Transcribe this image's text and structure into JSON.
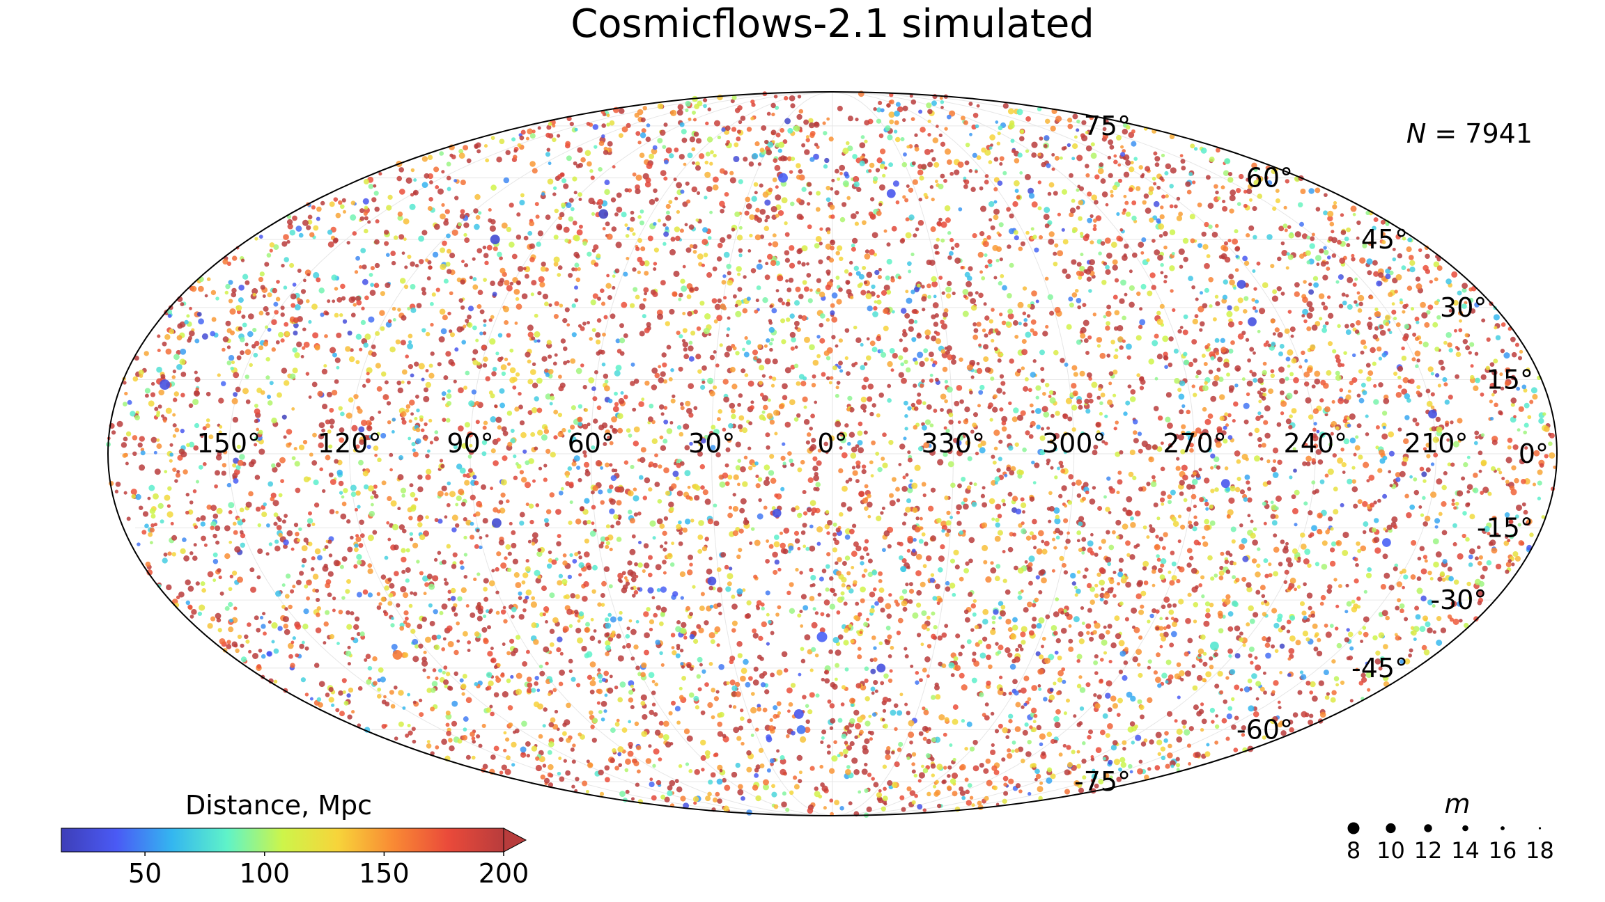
{
  "chart_data": {
    "type": "scatter",
    "projection": "mollweide",
    "title": "Cosmicflows-2.1 simulated",
    "annotation": "N = 7941",
    "n_points": 7941,
    "grid": true,
    "lat_ticks": [
      75,
      60,
      45,
      30,
      15,
      0,
      -15,
      -30,
      -45,
      -60,
      -75
    ],
    "lat_tick_labels": [
      "75°",
      "60°",
      "45°",
      "30°",
      "15°",
      "0°",
      "-15°",
      "-30°",
      "-45°",
      "-60°",
      "-75°"
    ],
    "lon_ticks": [
      150,
      120,
      90,
      60,
      30,
      0,
      330,
      300,
      270,
      240,
      210
    ],
    "lon_tick_labels": [
      "150°",
      "120°",
      "90°",
      "60°",
      "30°",
      "0°",
      "330°",
      "300°",
      "270°",
      "240°",
      "210°"
    ],
    "colorbar": {
      "label": "Distance, Mpc",
      "min": 15,
      "max": 200,
      "extend": "max",
      "ticks": [
        50,
        100,
        150,
        200
      ],
      "tick_labels": [
        "50",
        "100",
        "150",
        "200"
      ],
      "colormap": "jet",
      "colors": [
        "#3e3fb8",
        "#4a5af5",
        "#34b6f0",
        "#5ff3c8",
        "#cdf54a",
        "#f7d43a",
        "#f98a34",
        "#ea4a3a",
        "#b83c3c"
      ]
    },
    "size_legend": {
      "label": "m",
      "values": [
        8,
        10,
        12,
        14,
        16,
        18
      ],
      "tick_labels": [
        "8",
        "10",
        "12",
        "14",
        "16",
        "18"
      ]
    },
    "highlighted_points": [
      {
        "lon": 169,
        "lat": 14,
        "distance": 30,
        "m": 8
      },
      {
        "lon": 104,
        "lat": 45,
        "distance": 25,
        "m": 9
      },
      {
        "lon": 76,
        "lat": 51,
        "distance": 20,
        "m": 9
      },
      {
        "lon": 19,
        "lat": 60,
        "distance": 40,
        "m": 9
      },
      {
        "lon": 339,
        "lat": 56,
        "distance": 35,
        "m": 10
      },
      {
        "lon": 248,
        "lat": 27,
        "distance": 30,
        "m": 10
      },
      {
        "lon": 245,
        "lat": 35,
        "distance": 30,
        "m": 10
      },
      {
        "lon": 12,
        "lat": -60,
        "distance": 45,
        "m": 10
      },
      {
        "lon": 345,
        "lat": -45,
        "distance": 30,
        "m": 10
      },
      {
        "lon": 3,
        "lat": -38,
        "distance": 40,
        "m": 8
      },
      {
        "lon": 85,
        "lat": -14,
        "distance": 25,
        "m": 9
      },
      {
        "lon": 130,
        "lat": -42,
        "distance": 160,
        "m": 9
      },
      {
        "lon": 218,
        "lat": -18,
        "distance": 40,
        "m": 10
      },
      {
        "lon": 262,
        "lat": -6,
        "distance": 35,
        "m": 10
      },
      {
        "lon": 32,
        "lat": -26,
        "distance": 30,
        "m": 10
      },
      {
        "lon": 14,
        "lat": -12,
        "distance": 30,
        "m": 10
      },
      {
        "lon": 248,
        "lat": -40,
        "distance": 80,
        "m": 10
      },
      {
        "lon": 210,
        "lat": 8,
        "distance": 30,
        "m": 10
      },
      {
        "lon": 12,
        "lat": -56,
        "distance": 35,
        "m": 9
      }
    ]
  }
}
